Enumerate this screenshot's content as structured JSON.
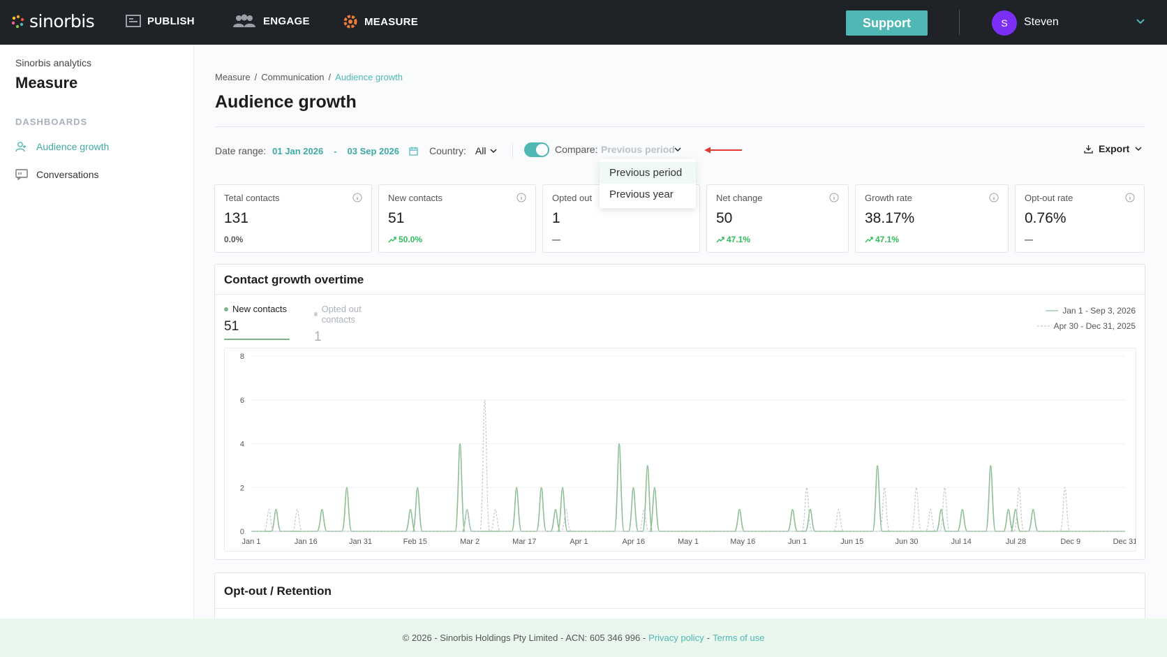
{
  "brand": {
    "name": "sinorbis"
  },
  "nav": {
    "publish": "PUBLISH",
    "engage": "ENGAGE",
    "measure": "MEASURE"
  },
  "topbar": {
    "support": "Support",
    "avatar_initial": "S",
    "user_name": "Steven"
  },
  "sidebar": {
    "subtitle": "Sinorbis analytics",
    "title": "Measure",
    "section": "DASHBOARDS",
    "items": [
      {
        "label": "Audience growth",
        "active": true
      },
      {
        "label": "Conversations",
        "active": false
      }
    ]
  },
  "breadcrumb": [
    "Measure",
    "Communication",
    "Audience growth"
  ],
  "page_title": "Audience growth",
  "filters": {
    "date_label": "Date range:",
    "date_from": "01 Jan 2026",
    "date_sep": "-",
    "date_to": "03 Sep 2026",
    "country_label": "Country:",
    "country_value": "All",
    "compare_label": "Compare:",
    "compare_value": "Previous period",
    "compare_enabled": true,
    "export": "Export"
  },
  "compare_options": [
    "Previous period",
    "Previous year"
  ],
  "cards": [
    {
      "label": "Tetal contacts",
      "value": "131",
      "delta": "0.0%",
      "trend": "none"
    },
    {
      "label": "New contacts",
      "value": "51",
      "delta": "50.0%",
      "trend": "up"
    },
    {
      "label": "Opted out",
      "value": "1",
      "delta": "—",
      "trend": "none"
    },
    {
      "label": "Net change",
      "value": "50",
      "delta": "47.1%",
      "trend": "up"
    },
    {
      "label": "Growth rate",
      "value": "38.17%",
      "delta": "47.1%",
      "trend": "up"
    },
    {
      "label": "Opt-out rate",
      "value": "0.76%",
      "delta": "—",
      "trend": "none"
    }
  ],
  "chart_panel": {
    "title": "Contact growth overtime",
    "tabs": [
      {
        "label": "New contacts",
        "value": "51",
        "color": "#7fb487"
      },
      {
        "label": "Opted out contacts",
        "value": "1",
        "color": "#c9ced3"
      }
    ],
    "legend": [
      "Jan 1 - Sep 3, 2026",
      "Apr 30 - Dec 31, 2025"
    ]
  },
  "chart_data": {
    "type": "line",
    "x_tick_labels": [
      "Jan 1",
      "Jan 16",
      "Jan 31",
      "Feb 15",
      "Mar 2",
      "Mar 17",
      "Apr 1",
      "Apr 16",
      "May 1",
      "May 16",
      "Jun 1",
      "Jun 15",
      "Jun 30",
      "Jul 14",
      "Jul 28",
      "Dec 9",
      "Dec 31"
    ],
    "ylim": [
      0,
      8
    ],
    "y_ticks": [
      0,
      2,
      4,
      6,
      8
    ],
    "day_span": 247,
    "series": [
      {
        "name": "Jan 1 - Sep 3, 2026",
        "style": "solid",
        "color": "#8cbf93",
        "peaks": [
          [
            7,
            1
          ],
          [
            20,
            1
          ],
          [
            27,
            2
          ],
          [
            45,
            1
          ],
          [
            47,
            2
          ],
          [
            59,
            4
          ],
          [
            61,
            1
          ],
          [
            75,
            2
          ],
          [
            82,
            2
          ],
          [
            86,
            1
          ],
          [
            88,
            2
          ],
          [
            104,
            4
          ],
          [
            108,
            2
          ],
          [
            112,
            3
          ],
          [
            114,
            2
          ],
          [
            138,
            1
          ],
          [
            153,
            1
          ],
          [
            158,
            1
          ],
          [
            177,
            3
          ],
          [
            195,
            1
          ],
          [
            201,
            1
          ],
          [
            209,
            3
          ],
          [
            214,
            1
          ],
          [
            216,
            1
          ],
          [
            221,
            1
          ]
        ]
      },
      {
        "name": "Apr 30 - Dec 31, 2025",
        "style": "dashed",
        "color": "#c4c9ce",
        "peaks": [
          [
            5,
            1
          ],
          [
            13,
            1
          ],
          [
            61,
            1
          ],
          [
            66,
            6
          ],
          [
            69,
            1
          ],
          [
            89,
            1
          ],
          [
            111,
            1
          ],
          [
            157,
            2
          ],
          [
            166,
            1
          ],
          [
            179,
            2
          ],
          [
            188,
            2
          ],
          [
            192,
            1
          ],
          [
            196,
            2
          ],
          [
            217,
            2
          ],
          [
            230,
            2
          ]
        ]
      }
    ]
  },
  "retention_panel": {
    "title": "Opt-out / Retention"
  },
  "footer": {
    "text": "© 2026 - Sinorbis Holdings Pty Limited - ACN: 605 346 996 -",
    "privacy": "Privacy policy",
    "sep": "-",
    "terms": "Terms of use"
  },
  "colors": {
    "accent": "#4fb8b5",
    "topbar": "#1f2226",
    "positive": "#2ebd5b",
    "avatar": "#7b2ff7",
    "arrow": "#e53935"
  }
}
